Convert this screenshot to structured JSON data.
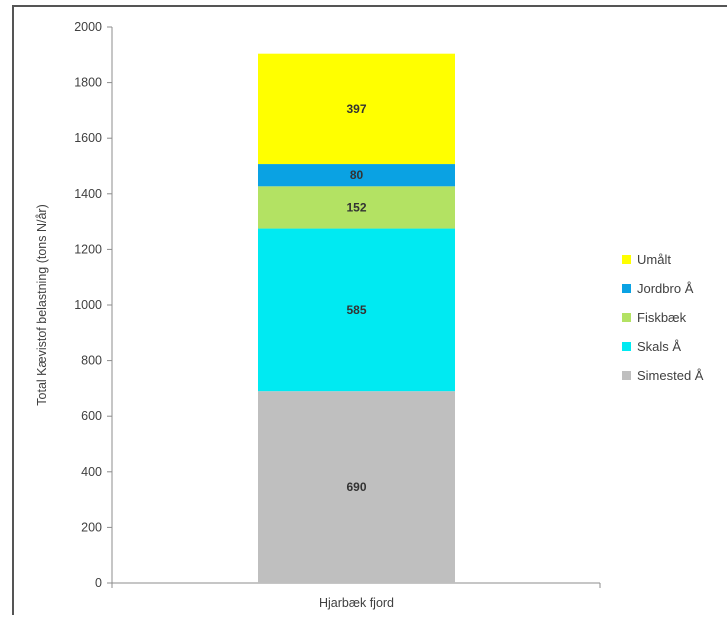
{
  "chart_data": {
    "type": "bar",
    "stacked": true,
    "categories": [
      "Hjarbæk fjord"
    ],
    "ylabel": "Total Kævistof belastning (tons N/år)",
    "xlabel": "",
    "ylim": [
      0,
      2000
    ],
    "yticks": [
      0,
      200,
      400,
      600,
      800,
      1000,
      1200,
      1400,
      1600,
      1800,
      2000
    ],
    "legend_position": "right",
    "series": [
      {
        "name": "Simested Å",
        "values": [
          690
        ],
        "color": "#bfbfbf"
      },
      {
        "name": "Skals Å",
        "values": [
          585
        ],
        "color": "#00eaf2"
      },
      {
        "name": "Fiskbæk",
        "values": [
          152
        ],
        "color": "#b3e263"
      },
      {
        "name": "Jordbro Å",
        "values": [
          80
        ],
        "color": "#0aa2e3"
      },
      {
        "name": "Umålt",
        "values": [
          397
        ],
        "color": "#ffff00"
      }
    ],
    "legend_order": [
      "Umålt",
      "Jordbro Å",
      "Fiskbæk",
      "Skals Å",
      "Simested Å"
    ]
  }
}
